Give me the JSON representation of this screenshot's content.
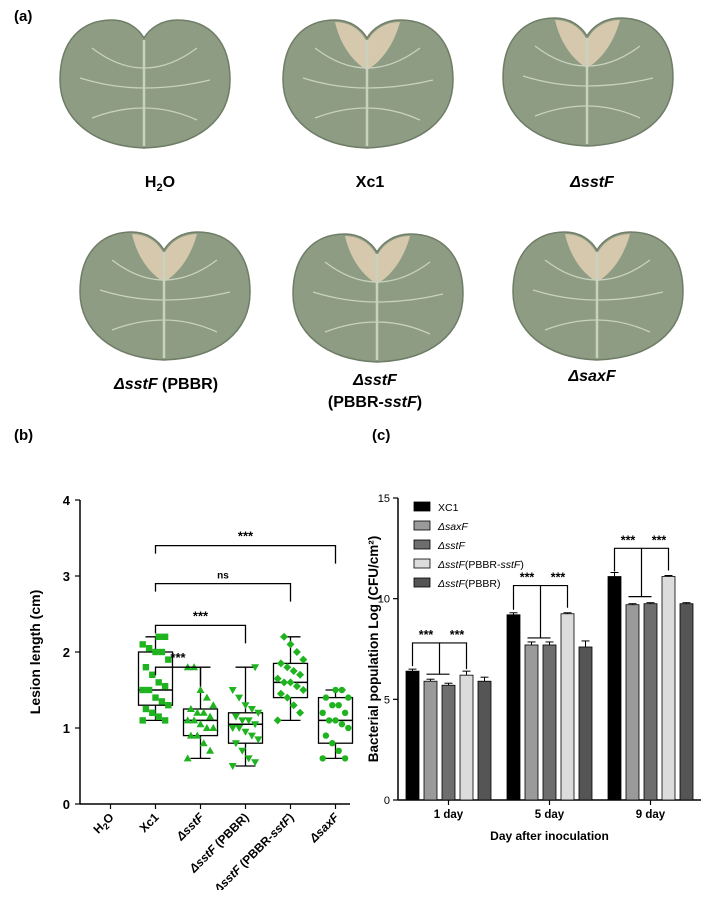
{
  "panel_a": {
    "label": "(a)",
    "leaves": [
      {
        "parts": [
          {
            "t": "H",
            "it": false
          },
          {
            "t": "2",
            "it": false,
            "sub": true
          },
          {
            "t": "O",
            "it": false
          }
        ]
      },
      {
        "parts": [
          {
            "t": "Xc1",
            "it": false
          }
        ]
      },
      {
        "parts": [
          {
            "t": "ΔsstF",
            "it": true
          }
        ]
      },
      {
        "parts": [
          {
            "t": "ΔsstF",
            "it": true
          },
          {
            "t": " (PBBR)",
            "it": false
          }
        ]
      },
      {
        "parts": [
          {
            "t": "ΔsstF",
            "it": true
          },
          {
            "t": "(PBBR-",
            "it": false,
            "br": true
          },
          {
            "t": "sstF",
            "it": true
          },
          {
            "t": ")",
            "it": false
          }
        ]
      },
      {
        "parts": [
          {
            "t": "ΔsaxF",
            "it": true
          }
        ]
      }
    ],
    "leaf_colors": {
      "base": "#8d9c83",
      "vein": "#c9d1bf",
      "edge": "#e7d3b7",
      "shadow": "#6f7d67"
    }
  },
  "chart_data": [
    {
      "panel": "(b)",
      "type": "box",
      "ylabel": "Lesion length (cm)",
      "ylim": [
        0,
        4
      ],
      "yticks": [
        0,
        1,
        2,
        3,
        4
      ],
      "categories": [
        "H2O",
        "Xc1",
        "ΔsstF",
        "ΔsstF (PBBR)",
        "ΔsstF (PBBR-sstF)",
        "ΔsaxF"
      ],
      "marker_color": "#1fb41f",
      "boxes": [
        null,
        {
          "min": 1.1,
          "q1": 1.3,
          "median": 1.5,
          "q3": 2.0,
          "max": 2.2
        },
        {
          "min": 0.6,
          "q1": 0.9,
          "median": 1.1,
          "q3": 1.25,
          "max": 1.8
        },
        {
          "min": 0.5,
          "q1": 0.8,
          "median": 1.05,
          "q3": 1.2,
          "max": 1.8
        },
        {
          "min": 1.1,
          "q1": 1.4,
          "median": 1.6,
          "q3": 1.85,
          "max": 2.2
        },
        {
          "min": 0.6,
          "q1": 0.8,
          "median": 1.1,
          "q3": 1.4,
          "max": 1.5
        }
      ],
      "points": [
        [],
        [
          1.1,
          1.1,
          1.15,
          1.2,
          1.25,
          1.3,
          1.35,
          1.4,
          1.5,
          1.5,
          1.55,
          1.6,
          1.7,
          1.8,
          1.9,
          2.0,
          2.0,
          2.05,
          2.1,
          2.2,
          2.2
        ],
        [
          0.6,
          0.7,
          0.8,
          0.9,
          0.9,
          1.0,
          1.0,
          1.05,
          1.1,
          1.1,
          1.15,
          1.2,
          1.2,
          1.25,
          1.3,
          1.4,
          1.5,
          1.8,
          1.8
        ],
        [
          0.5,
          0.55,
          0.6,
          0.7,
          0.8,
          0.85,
          0.9,
          0.95,
          1.0,
          1.0,
          1.05,
          1.1,
          1.1,
          1.15,
          1.2,
          1.25,
          1.3,
          1.4,
          1.5,
          1.8
        ],
        [
          1.1,
          1.2,
          1.3,
          1.4,
          1.45,
          1.5,
          1.55,
          1.6,
          1.6,
          1.65,
          1.7,
          1.75,
          1.8,
          1.85,
          1.9,
          2.0,
          2.1,
          2.2
        ],
        [
          0.6,
          0.6,
          0.7,
          0.8,
          0.9,
          1.0,
          1.05,
          1.1,
          1.1,
          1.2,
          1.2,
          1.3,
          1.3,
          1.4,
          1.4,
          1.5,
          1.5
        ]
      ],
      "markers": [
        "circle",
        "square",
        "triangle",
        "inv-triangle",
        "diamond",
        "circle"
      ],
      "comparisons": [
        {
          "from": 1,
          "to": 2,
          "y": 1.8,
          "label": "***"
        },
        {
          "from": 1,
          "to": 3,
          "y": 2.35,
          "label": "***"
        },
        {
          "from": 1,
          "to": 4,
          "y": 2.9,
          "label": "ns"
        },
        {
          "from": 1,
          "to": 5,
          "y": 3.4,
          "label": "***"
        }
      ]
    },
    {
      "panel": "(c)",
      "type": "bar",
      "ylabel": "Bacterial population Log (CFU/cm²)",
      "xlabel": "Day after inoculation",
      "ylim": [
        0,
        15
      ],
      "yticks": [
        0,
        5,
        10,
        15
      ],
      "categories": [
        "1 day",
        "5 day",
        "9 day"
      ],
      "series": [
        {
          "name": "XC1",
          "color": "#000000",
          "values": [
            6.4,
            9.2,
            11.1
          ],
          "err": [
            0.1,
            0.1,
            0.2
          ]
        },
        {
          "name": "ΔsaxF",
          "color": "#9a9a9a",
          "values": [
            5.9,
            7.7,
            9.7
          ],
          "err": [
            0.1,
            0.15,
            0.05
          ]
        },
        {
          "name": "ΔsstF",
          "color": "#6e6e6e",
          "values": [
            5.7,
            7.7,
            9.75
          ],
          "err": [
            0.1,
            0.15,
            0.05
          ]
        },
        {
          "name": "ΔsstF(PBBR-sstF)",
          "color": "#dcdcdc",
          "values": [
            6.2,
            9.25,
            11.1
          ],
          "err": [
            0.2,
            0.05,
            0.05
          ]
        },
        {
          "name": "ΔsstF(PBBR)",
          "color": "#555555",
          "values": [
            5.9,
            7.6,
            9.75
          ],
          "err": [
            0.2,
            0.3,
            0.05
          ]
        }
      ],
      "sig_label": "***"
    }
  ]
}
